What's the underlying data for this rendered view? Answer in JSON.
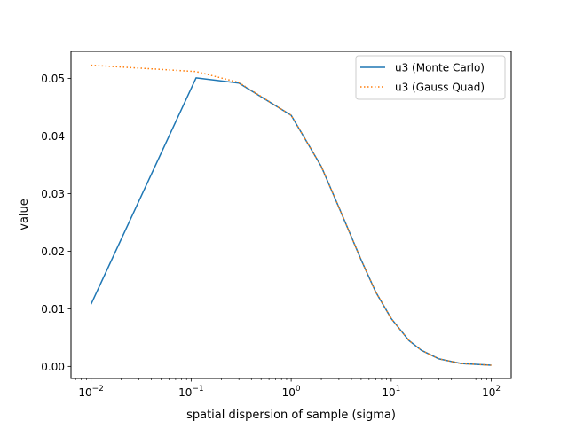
{
  "chart_data": {
    "type": "line",
    "title": "",
    "xlabel": "spatial dispersion of sample (sigma)",
    "ylabel": "value",
    "xscale": "log",
    "xlim": [
      0.0063,
      158
    ],
    "ylim": [
      -0.0021,
      0.0547
    ],
    "xticks": [
      {
        "value": 0.01,
        "base": "10",
        "exp": "−2"
      },
      {
        "value": 0.1,
        "base": "10",
        "exp": "−1"
      },
      {
        "value": 1,
        "base": "10",
        "exp": "0"
      },
      {
        "value": 10,
        "base": "10",
        "exp": "1"
      },
      {
        "value": 100,
        "base": "10",
        "exp": "2"
      }
    ],
    "yticks": [
      {
        "value": 0.0,
        "label": "0.00"
      },
      {
        "value": 0.01,
        "label": "0.01"
      },
      {
        "value": 0.02,
        "label": "0.02"
      },
      {
        "value": 0.03,
        "label": "0.03"
      },
      {
        "value": 0.04,
        "label": "0.04"
      },
      {
        "value": 0.05,
        "label": "0.05"
      }
    ],
    "legend_position": "top-right",
    "series": [
      {
        "name": "u3 (Monte Carlo)",
        "color": "#1f77b4",
        "style": "solid",
        "x": [
          0.01,
          0.112,
          0.3,
          1.0,
          2.0,
          3.0,
          5.0,
          7.0,
          10.0,
          15.0,
          20.0,
          30.0,
          50.0,
          100.0
        ],
        "y": [
          0.0108,
          0.0501,
          0.0492,
          0.0436,
          0.0347,
          0.0276,
          0.0185,
          0.0129,
          0.0083,
          0.0045,
          0.0028,
          0.0013,
          0.0005,
          0.0002
        ]
      },
      {
        "name": "u3 (Gauss Quad)",
        "color": "#ff7f0e",
        "style": "dotted",
        "x": [
          0.01,
          0.112,
          0.3,
          1.0,
          2.0,
          3.0,
          5.0,
          7.0,
          10.0,
          15.0,
          20.0,
          30.0,
          50.0,
          100.0
        ],
        "y": [
          0.0523,
          0.0512,
          0.0493,
          0.0436,
          0.0347,
          0.0276,
          0.0185,
          0.0129,
          0.0083,
          0.0045,
          0.0028,
          0.0013,
          0.0005,
          0.0002
        ]
      }
    ]
  }
}
